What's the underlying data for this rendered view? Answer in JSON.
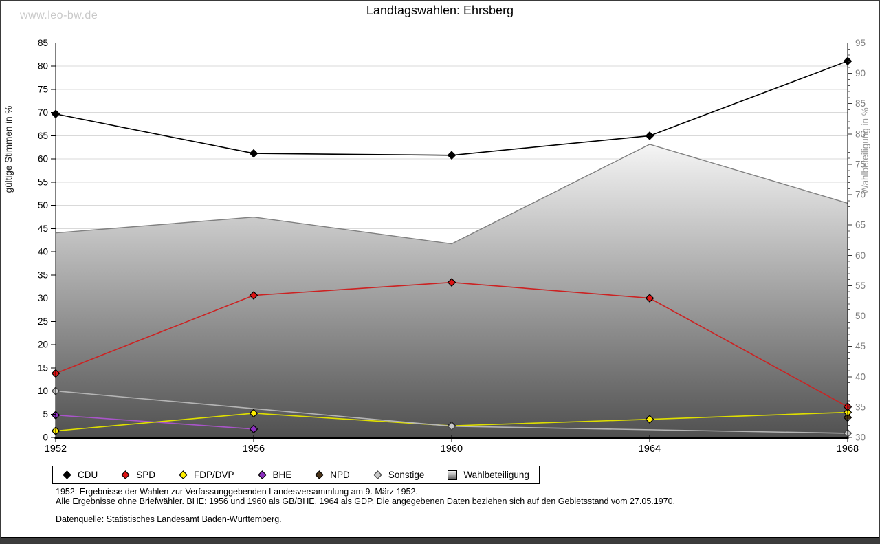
{
  "page": {
    "watermark": "www.leo-bw.de",
    "title": "Landtagswahlen: Ehrsberg",
    "footnote_1952": "1952: Ergebnisse der Wahlen zur Verfassunggebenden Landesversammlung am 9. März 1952.",
    "footnote_general": "Alle Ergebnisse ohne Briefwähler. BHE: 1956 und 1960 als GB/BHE, 1964 als GDP. Die angegebenen Daten beziehen sich auf den Gebietsstand vom 27.05.1970.",
    "source": "Datenquelle: Statistisches Landesamt Baden-Württemberg."
  },
  "chart_data": {
    "type": "line",
    "title": "Landtagswahlen: Ehrsberg",
    "x": [
      1952,
      1956,
      1960,
      1964,
      1968
    ],
    "ylabel_left": "gültige Stimmen in %",
    "ylabel_right": "Wahlbeteiligung in %",
    "ylim_left": [
      0,
      85
    ],
    "ylim_right": [
      30,
      95
    ],
    "ytick_step": 5,
    "right_axis_minor_tick_step": 1,
    "grid": true,
    "legend_position": "bottom",
    "colors": {
      "grid": "#d9d9d9",
      "axis": "#000000",
      "right_axis_text": "#7d7d7d",
      "area_border": "#808080",
      "area_gradient_top": "#f5f5f5",
      "area_gradient_bottom": "#505050"
    },
    "series": [
      {
        "name": "CDU",
        "axis": "left",
        "kind": "line",
        "color": "#000000",
        "marker": "#000000",
        "values": [
          69.7,
          61.2,
          60.8,
          65.0,
          81.1
        ]
      },
      {
        "name": "SPD",
        "axis": "left",
        "kind": "line",
        "color": "#cc2222",
        "marker": "#dd1414",
        "values": [
          13.8,
          30.6,
          33.4,
          30.0,
          6.6
        ]
      },
      {
        "name": "FDP/DVP",
        "axis": "left",
        "kind": "line",
        "color": "#dfdf00",
        "marker": "#ffee00",
        "values": [
          1.4,
          5.2,
          2.5,
          3.9,
          5.4
        ]
      },
      {
        "name": "BHE",
        "axis": "left",
        "kind": "line",
        "color": "#a955c9",
        "marker": "#8c2fbf",
        "values": [
          4.8,
          1.8,
          null,
          null,
          null
        ]
      },
      {
        "name": "NPD",
        "axis": "left",
        "kind": "line",
        "color": "#4a3318",
        "marker": "#4a3318",
        "values": [
          null,
          null,
          null,
          null,
          4.3
        ]
      },
      {
        "name": "Sonstige",
        "axis": "left",
        "kind": "line",
        "color": "#b5b5b5",
        "marker": "#c9c9c9",
        "marker_stroke": "#444444",
        "values": [
          10.0,
          null,
          2.4,
          null,
          0.9
        ]
      },
      {
        "name": "Wahlbeteiligung",
        "axis": "right",
        "kind": "area",
        "color": "#808080",
        "values": [
          63.7,
          66.3,
          61.9,
          78.3,
          68.6
        ]
      }
    ]
  }
}
